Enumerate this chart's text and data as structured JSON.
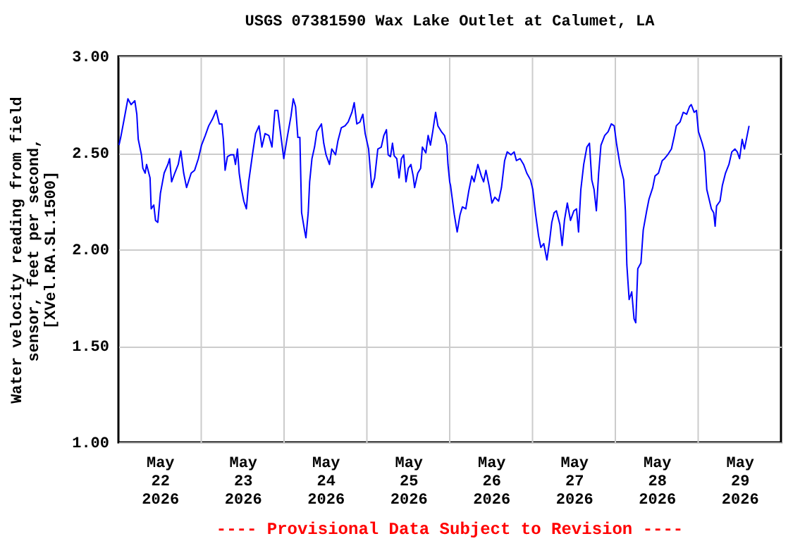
{
  "chart_data": {
    "type": "line",
    "title": "USGS 07381590 Wax Lake Outlet at Calumet, LA",
    "ylabel": "Water velocity reading from field sensor, feet per second, [XVel.RA.SL.1500]",
    "annotations": [
      "---- Provisional Data Subject to Revision ----"
    ],
    "xlim": [
      "2026-05-22",
      "2026-05-30"
    ],
    "xticks": [
      {
        "value": "2026-05-22T12:00",
        "label": "May 22 2026"
      },
      {
        "value": "2026-05-23T12:00",
        "label": "May 23 2026"
      },
      {
        "value": "2026-05-24T12:00",
        "label": "May 24 2026"
      },
      {
        "value": "2026-05-25T12:00",
        "label": "May 25 2026"
      },
      {
        "value": "2026-05-26T12:00",
        "label": "May 26 2026"
      },
      {
        "value": "2026-05-27T12:00",
        "label": "May 27 2026"
      },
      {
        "value": "2026-05-28T12:00",
        "label": "May 28 2026"
      },
      {
        "value": "2026-05-29T12:00",
        "label": "May 29 2026"
      },
      {
        "value": "2026-05-23",
        "label": null
      },
      {
        "value": "2026-05-24",
        "label": null
      },
      {
        "value": "2026-05-25",
        "label": null
      },
      {
        "value": "2026-05-26",
        "label": null
      },
      {
        "value": "2026-05-27",
        "label": null
      },
      {
        "value": "2026-05-28",
        "label": null
      },
      {
        "value": "2026-05-29",
        "label": null
      }
    ],
    "ylim": [
      1,
      3
    ],
    "yticks": [
      {
        "value": 1,
        "label": "1.00"
      },
      {
        "value": 1.5,
        "label": "1.50"
      },
      {
        "value": 2,
        "label": "2.00"
      },
      {
        "value": 2.5,
        "label": "2.50"
      },
      {
        "value": 3,
        "label": "3.00"
      }
    ],
    "grid": true,
    "series": [
      {
        "color": "#0000ff",
        "x": [
          "2026-05-22T00:10",
          "2026-05-22T00:40",
          "2026-05-22T01:40",
          "2026-05-22T02:45",
          "2026-05-22T03:40",
          "2026-05-22T04:45",
          "2026-05-22T05:20",
          "2026-05-22T05:45",
          "2026-05-22T06:40",
          "2026-05-22T07:05",
          "2026-05-22T07:45",
          "2026-05-22T08:10",
          "2026-05-22T09:10",
          "2026-05-22T09:30",
          "2026-05-22T10:15",
          "2026-05-22T10:45",
          "2026-05-22T11:25",
          "2026-05-22T12:10",
          "2026-05-22T13:15",
          "2026-05-22T14:20",
          "2026-05-22T14:50",
          "2026-05-22T15:25",
          "2026-05-22T16:20",
          "2026-05-22T17:20",
          "2026-05-22T18:05",
          "2026-05-22T18:55",
          "2026-05-22T19:45",
          "2026-05-22T21:05",
          "2026-05-22T22:05",
          "2026-05-22T23:10",
          "2026-05-23T00:05",
          "2026-05-23T01:10",
          "2026-05-23T02:10",
          "2026-05-23T03:15",
          "2026-05-23T04:20",
          "2026-05-23T05:15",
          "2026-05-23T06:00",
          "2026-05-23T06:25",
          "2026-05-23T06:55",
          "2026-05-23T07:35",
          "2026-05-23T08:35",
          "2026-05-23T09:25",
          "2026-05-23T09:55",
          "2026-05-23T10:30",
          "2026-05-23T11:00",
          "2026-05-23T11:35",
          "2026-05-23T12:20",
          "2026-05-23T13:05",
          "2026-05-23T13:45",
          "2026-05-23T14:50",
          "2026-05-23T15:45",
          "2026-05-23T16:45",
          "2026-05-23T17:35",
          "2026-05-23T18:30",
          "2026-05-23T19:35",
          "2026-05-23T20:30",
          "2026-05-23T21:20",
          "2026-05-23T22:10",
          "2026-05-23T23:00",
          "2026-05-23T23:55",
          "2026-05-24T00:55",
          "2026-05-24T02:00",
          "2026-05-24T02:40",
          "2026-05-24T03:20",
          "2026-05-24T04:00",
          "2026-05-24T04:35",
          "2026-05-24T05:05",
          "2026-05-24T05:55",
          "2026-05-24T06:20",
          "2026-05-24T07:00",
          "2026-05-24T07:25",
          "2026-05-24T08:05",
          "2026-05-24T08:50",
          "2026-05-24T09:30",
          "2026-05-24T10:50",
          "2026-05-24T11:30",
          "2026-05-24T12:10",
          "2026-05-24T13:10",
          "2026-05-24T13:50",
          "2026-05-24T14:55",
          "2026-05-24T15:35",
          "2026-05-24T16:35",
          "2026-05-24T17:40",
          "2026-05-24T18:35",
          "2026-05-24T19:40",
          "2026-05-24T20:20",
          "2026-05-24T21:05",
          "2026-05-24T22:00",
          "2026-05-24T22:50",
          "2026-05-24T23:30",
          "2026-05-25T00:30",
          "2026-05-25T01:00",
          "2026-05-25T01:25",
          "2026-05-25T02:15",
          "2026-05-25T03:10",
          "2026-05-25T04:10",
          "2026-05-25T04:55",
          "2026-05-25T05:40",
          "2026-05-25T06:10",
          "2026-05-25T06:50",
          "2026-05-25T07:25",
          "2026-05-25T07:55",
          "2026-05-25T08:40",
          "2026-05-25T09:20",
          "2026-05-25T10:00",
          "2026-05-25T10:40",
          "2026-05-25T11:20",
          "2026-05-25T12:00",
          "2026-05-25T12:45",
          "2026-05-25T13:25",
          "2026-05-25T13:50",
          "2026-05-25T14:45",
          "2026-05-25T15:35",
          "2026-05-25T16:05",
          "2026-05-25T17:05",
          "2026-05-25T17:45",
          "2026-05-25T18:25",
          "2026-05-25T19:05",
          "2026-05-25T19:55",
          "2026-05-25T20:35",
          "2026-05-25T21:35",
          "2026-05-25T22:30",
          "2026-05-25T23:10",
          "2026-05-25T23:30",
          "2026-05-26T00:00",
          "2026-05-26T00:15",
          "2026-05-26T01:20",
          "2026-05-26T02:10",
          "2026-05-26T03:00",
          "2026-05-26T03:40",
          "2026-05-26T04:40",
          "2026-05-26T05:30",
          "2026-05-26T06:25",
          "2026-05-26T07:05",
          "2026-05-26T08:10",
          "2026-05-26T09:10",
          "2026-05-26T09:50",
          "2026-05-26T10:30",
          "2026-05-26T11:25",
          "2026-05-26T12:15",
          "2026-05-26T13:05",
          "2026-05-26T14:10",
          "2026-05-26T15:00",
          "2026-05-26T15:55",
          "2026-05-26T16:40",
          "2026-05-26T17:45",
          "2026-05-26T18:40",
          "2026-05-26T19:20",
          "2026-05-26T20:25",
          "2026-05-26T21:25",
          "2026-05-26T22:20",
          "2026-05-26T23:25",
          "2026-05-27T00:05",
          "2026-05-27T00:50",
          "2026-05-27T01:45",
          "2026-05-27T02:25",
          "2026-05-27T03:15",
          "2026-05-27T04:10",
          "2026-05-27T04:55",
          "2026-05-27T05:35",
          "2026-05-27T06:15",
          "2026-05-27T06:55",
          "2026-05-27T07:55",
          "2026-05-27T08:35",
          "2026-05-27T09:15",
          "2026-05-27T10:05",
          "2026-05-27T11:00",
          "2026-05-27T12:00",
          "2026-05-27T12:45",
          "2026-05-27T13:20",
          "2026-05-27T14:00",
          "2026-05-27T14:50",
          "2026-05-27T15:45",
          "2026-05-27T16:30",
          "2026-05-27T17:10",
          "2026-05-27T17:50",
          "2026-05-27T18:30",
          "2026-05-27T19:10",
          "2026-05-27T19:50",
          "2026-05-27T20:55",
          "2026-05-27T21:55",
          "2026-05-27T22:50",
          "2026-05-27T23:40",
          "2026-05-28T00:20",
          "2026-05-28T01:20",
          "2026-05-28T02:25",
          "2026-05-28T02:55",
          "2026-05-28T03:20",
          "2026-05-28T04:00",
          "2026-05-28T04:45",
          "2026-05-28T05:25",
          "2026-05-28T05:55",
          "2026-05-28T06:30",
          "2026-05-28T07:25",
          "2026-05-28T08:05",
          "2026-05-28T09:05",
          "2026-05-28T09:45",
          "2026-05-28T10:50",
          "2026-05-28T11:30",
          "2026-05-28T12:30",
          "2026-05-28T13:35",
          "2026-05-28T14:15",
          "2026-05-28T15:10",
          "2026-05-28T16:15",
          "2026-05-28T17:00",
          "2026-05-28T17:40",
          "2026-05-28T18:45",
          "2026-05-28T19:40",
          "2026-05-28T20:40",
          "2026-05-28T21:30",
          "2026-05-28T22:00",
          "2026-05-28T22:50",
          "2026-05-28T23:30",
          "2026-05-29T00:05",
          "2026-05-29T01:10",
          "2026-05-29T01:50",
          "2026-05-29T02:30",
          "2026-05-29T03:10",
          "2026-05-29T03:50",
          "2026-05-29T04:30",
          "2026-05-29T04:55",
          "2026-05-29T05:20",
          "2026-05-29T06:20",
          "2026-05-29T07:00",
          "2026-05-29T07:55",
          "2026-05-29T08:55",
          "2026-05-29T09:45",
          "2026-05-29T10:40",
          "2026-05-29T11:20",
          "2026-05-29T12:00",
          "2026-05-29T12:45",
          "2026-05-29T13:25",
          "2026-05-29T14:05",
          "2026-05-29T14:45"
        ],
        "values": [
          2.54,
          2.58,
          2.675,
          2.78,
          2.75,
          2.77,
          2.7,
          2.57,
          2.49,
          2.42,
          2.395,
          2.44,
          2.37,
          2.21,
          2.23,
          2.15,
          2.14,
          2.29,
          2.395,
          2.44,
          2.47,
          2.35,
          2.395,
          2.44,
          2.51,
          2.395,
          2.32,
          2.395,
          2.41,
          2.47,
          2.54,
          2.59,
          2.64,
          2.675,
          2.72,
          2.65,
          2.65,
          2.57,
          2.41,
          2.48,
          2.49,
          2.49,
          2.44,
          2.52,
          2.395,
          2.32,
          2.25,
          2.21,
          2.35,
          2.49,
          2.6,
          2.64,
          2.53,
          2.6,
          2.59,
          2.53,
          2.72,
          2.72,
          2.6,
          2.47,
          2.58,
          2.69,
          2.78,
          2.74,
          2.58,
          2.58,
          2.19,
          2.1,
          2.06,
          2.19,
          2.35,
          2.47,
          2.53,
          2.61,
          2.65,
          2.55,
          2.49,
          2.44,
          2.52,
          2.49,
          2.56,
          2.63,
          2.64,
          2.66,
          2.71,
          2.76,
          2.65,
          2.66,
          2.7,
          2.6,
          2.52,
          2.41,
          2.32,
          2.37,
          2.52,
          2.53,
          2.59,
          2.62,
          2.49,
          2.48,
          2.55,
          2.485,
          2.47,
          2.37,
          2.47,
          2.49,
          2.35,
          2.42,
          2.44,
          2.38,
          2.32,
          2.395,
          2.42,
          2.53,
          2.5,
          2.59,
          2.54,
          2.61,
          2.71,
          2.64,
          2.61,
          2.59,
          2.54,
          2.44,
          2.35,
          2.33,
          2.18,
          2.09,
          2.18,
          2.22,
          2.21,
          2.3,
          2.38,
          2.35,
          2.44,
          2.38,
          2.35,
          2.41,
          2.33,
          2.24,
          2.27,
          2.25,
          2.32,
          2.46,
          2.505,
          2.49,
          2.505,
          2.46,
          2.47,
          2.44,
          2.395,
          2.36,
          2.31,
          2.19,
          2.07,
          2.01,
          2.03,
          1.945,
          2.04,
          2.14,
          2.19,
          2.2,
          2.13,
          2.02,
          2.15,
          2.24,
          2.15,
          2.2,
          2.21,
          2.09,
          2.31,
          2.44,
          2.53,
          2.55,
          2.36,
          2.31,
          2.2,
          2.395,
          2.54,
          2.59,
          2.61,
          2.65,
          2.64,
          2.55,
          2.44,
          2.36,
          2.2,
          1.92,
          1.74,
          1.78,
          1.64,
          1.62,
          1.9,
          1.93,
          2.1,
          2.2,
          2.26,
          2.32,
          2.38,
          2.395,
          2.46,
          2.47,
          2.49,
          2.52,
          2.58,
          2.64,
          2.66,
          2.71,
          2.7,
          2.74,
          2.75,
          2.71,
          2.72,
          2.61,
          2.55,
          2.505,
          2.31,
          2.26,
          2.21,
          2.19,
          2.12,
          2.225,
          2.25,
          2.33,
          2.395,
          2.44,
          2.505,
          2.52,
          2.505,
          2.47,
          2.57,
          2.52,
          2.58,
          2.64
        ]
      }
    ]
  }
}
